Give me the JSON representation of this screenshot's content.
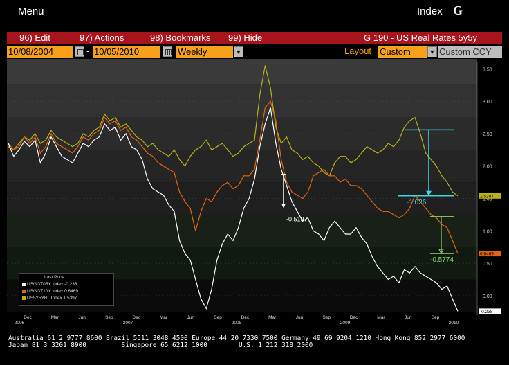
{
  "header": {
    "menu_label": "Menu",
    "index_label": "Index",
    "index_logo": "G"
  },
  "toolbar": {
    "edit": "96) Edit",
    "actions": "97) Actions",
    "bookmarks": "98) Bookmarks",
    "hide": "99) Hide",
    "security": "G 190 - US Real Rates 5y5y"
  },
  "controls": {
    "start_date": "10/08/2004",
    "end_date": "10/05/2010",
    "dash": "-",
    "period": "Weekly",
    "layout_label": "Layout",
    "layout_value": "Custom",
    "currency": "Custom CCY"
  },
  "colors": {
    "white": "#ffffff",
    "orange": "#e8650f",
    "yellow": "#b9b21a",
    "accent": "#f7a11a",
    "red": "#a8141b",
    "cyan": "#3fd6e6",
    "green": "#8fd36a"
  },
  "chart_data": {
    "type": "line",
    "ylim": [
      -0.3,
      3.6
    ],
    "y_ticks": [
      "3.50",
      "3.00",
      "2.50",
      "2.00",
      "1.50",
      "1.00",
      "0.50",
      "0.00"
    ],
    "x_month_labels": [
      "Dec",
      "Mar",
      "Jun",
      "Sep",
      "Dec",
      "Mar",
      "Jun",
      "Sep",
      "Dec",
      "Mar",
      "Jun",
      "Sep",
      "Dec",
      "Mar",
      "Jun",
      "Sep"
    ],
    "x_year_labels": [
      "2006",
      "2007",
      "2008",
      "2009",
      "2010"
    ],
    "last_price_title": "Last Price",
    "series": [
      {
        "name": "USGGT05Y Index",
        "last": "-0.238",
        "label": "-0.238",
        "color": "#ffffff",
        "values": [
          2.35,
          2.15,
          2.25,
          2.38,
          2.3,
          2.4,
          2.05,
          2.2,
          2.45,
          2.3,
          2.15,
          2.1,
          2.05,
          2.2,
          2.35,
          2.3,
          2.4,
          2.45,
          2.65,
          2.55,
          2.6,
          2.4,
          2.5,
          2.3,
          2.25,
          2.1,
          1.8,
          1.65,
          1.6,
          1.55,
          1.4,
          1.3,
          0.85,
          0.65,
          0.55,
          0.25,
          -0.05,
          -0.2,
          0.1,
          0.55,
          0.8,
          0.95,
          0.85,
          1.05,
          1.35,
          1.5,
          1.8,
          2.3,
          2.65,
          2.9,
          2.35,
          1.95,
          1.7,
          1.45,
          1.3,
          1.15,
          1.2,
          1.0,
          0.95,
          0.85,
          1.05,
          1.15,
          1.05,
          0.95,
          0.95,
          1.05,
          0.9,
          0.8,
          0.6,
          0.45,
          0.35,
          0.25,
          0.3,
          0.2,
          0.4,
          0.35,
          0.45,
          0.35,
          0.3,
          0.25,
          0.2,
          0.1,
          0.15,
          -0.05,
          -0.24
        ]
      },
      {
        "name": "USGGT10Y Index",
        "last": "0.6469",
        "label": "0.6469",
        "color": "#e8650f",
        "values": [
          2.35,
          2.25,
          2.3,
          2.45,
          2.35,
          2.45,
          2.2,
          2.3,
          2.5,
          2.35,
          2.3,
          2.25,
          2.2,
          2.3,
          2.45,
          2.4,
          2.5,
          2.55,
          2.75,
          2.65,
          2.7,
          2.55,
          2.6,
          2.45,
          2.4,
          2.3,
          2.2,
          2.15,
          2.05,
          2.0,
          1.95,
          1.9,
          1.6,
          1.45,
          1.35,
          1.0,
          1.3,
          1.5,
          1.45,
          1.6,
          1.7,
          1.75,
          1.65,
          1.7,
          1.85,
          1.85,
          1.95,
          2.4,
          2.9,
          3.0,
          2.7,
          2.1,
          1.75,
          1.6,
          1.55,
          1.5,
          1.6,
          1.85,
          1.9,
          1.95,
          1.85,
          1.85,
          1.75,
          1.8,
          1.7,
          1.7,
          1.65,
          1.55,
          1.45,
          1.35,
          1.3,
          1.3,
          1.25,
          1.2,
          1.25,
          1.35,
          1.55,
          1.45,
          1.35,
          1.25,
          1.2,
          1.1,
          1.05,
          0.85,
          0.65
        ]
      },
      {
        "name": "US5Y5YRL Index",
        "last": "1.5397",
        "label": "1.5397",
        "color": "#b9b21a",
        "values": [
          2.3,
          2.25,
          2.35,
          2.45,
          2.4,
          2.5,
          2.35,
          2.4,
          2.55,
          2.45,
          2.4,
          2.35,
          2.3,
          2.35,
          2.5,
          2.45,
          2.55,
          2.6,
          2.8,
          2.7,
          2.75,
          2.6,
          2.65,
          2.55,
          2.45,
          2.4,
          2.3,
          2.35,
          2.25,
          2.2,
          2.15,
          2.25,
          2.1,
          2.0,
          2.15,
          2.25,
          2.3,
          2.4,
          2.25,
          2.3,
          2.35,
          2.25,
          2.15,
          2.2,
          2.3,
          2.35,
          2.4,
          3.1,
          3.55,
          3.2,
          2.6,
          2.35,
          2.45,
          2.25,
          2.2,
          2.1,
          2.15,
          2.05,
          2.0,
          1.9,
          1.85,
          2.05,
          2.15,
          2.15,
          2.05,
          2.1,
          2.2,
          2.3,
          2.25,
          2.2,
          2.25,
          2.35,
          2.3,
          2.4,
          2.6,
          2.7,
          2.75,
          2.5,
          2.2,
          2.1,
          2.0,
          1.85,
          1.75,
          1.6,
          1.54
        ]
      }
    ],
    "annotations": [
      "-0.5197",
      "-1.026",
      "-0.5774"
    ]
  },
  "footer": {
    "line1": "Australia 61 2 9777 8600 Brazil 5511 3048 4500 Europe 44 20 7330 7500 Germany 49 69 9204 1210 Hong Kong 852 2977 6000",
    "line2": "Japan 81 3 3201 8900         Singapore 65 6212 1000        U.S. 1 212 318 2000"
  }
}
